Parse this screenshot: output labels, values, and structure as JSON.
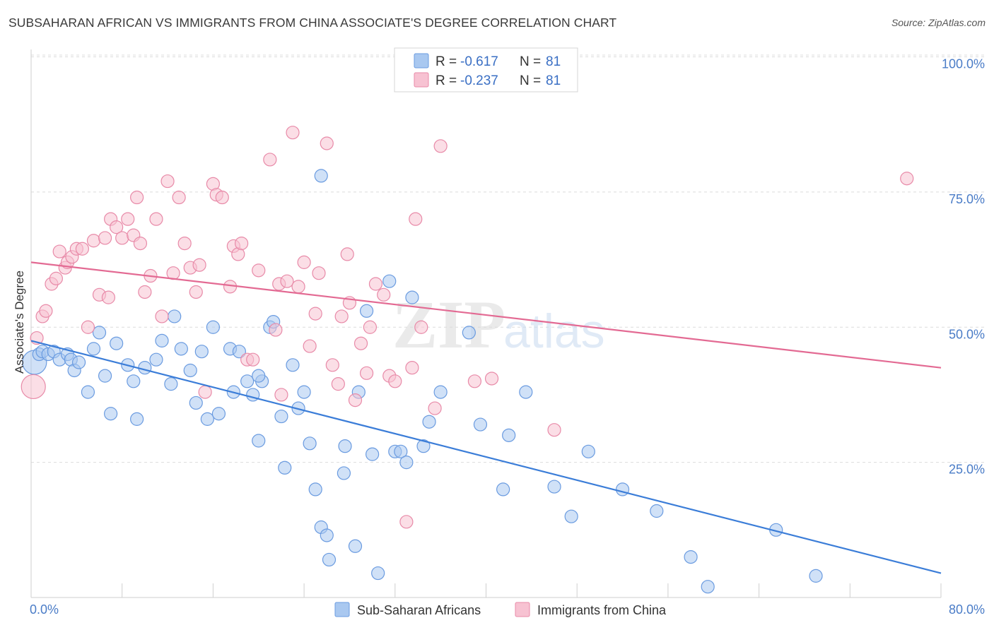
{
  "title": "SUBSAHARAN AFRICAN VS IMMIGRANTS FROM CHINA ASSOCIATE'S DEGREE CORRELATION CHART",
  "source": "Source: ZipAtlas.com",
  "legend_top": [
    {
      "r_label": "R =",
      "r_value": "-0.617",
      "n_label": "N =",
      "n_value": "81",
      "color": "#a9c8f0",
      "stroke": "#6a9be0"
    },
    {
      "r_label": "R =",
      "r_value": "-0.237",
      "n_label": "N =",
      "n_value": "81",
      "color": "#f7c2d2",
      "stroke": "#e88aa8"
    }
  ],
  "legend_bottom": [
    {
      "label": "Sub-Saharan Africans",
      "color": "#a9c8f0",
      "stroke": "#6a9be0"
    },
    {
      "label": "Immigrants from China",
      "color": "#f7c2d2",
      "stroke": "#e88aa8"
    }
  ],
  "chart_data": {
    "type": "scatter",
    "xlabel": "",
    "ylabel": "Associate's Degree",
    "xlim": [
      0,
      80
    ],
    "ylim": [
      0,
      105
    ],
    "x_tick_labels": [
      "0.0%",
      "80.0%"
    ],
    "y_ticks": [
      25,
      50,
      75,
      100
    ],
    "y_tick_labels": [
      "25.0%",
      "50.0%",
      "75.0%",
      "100.0%"
    ],
    "grid": true,
    "legend_position": "top-center",
    "series": [
      {
        "name": "Sub-Saharan Africans",
        "color": "#3b7dd8",
        "point_fill": "#a9c8f0",
        "point_stroke": "#6a9be0",
        "trend": {
          "x": [
            0,
            80
          ],
          "y": [
            47.5,
            4.5
          ]
        },
        "points": [
          [
            0.3,
            43.5
          ],
          [
            0.7,
            45
          ],
          [
            1.0,
            45.5
          ],
          [
            1.5,
            45
          ],
          [
            2.0,
            45.5
          ],
          [
            2.5,
            44
          ],
          [
            3.2,
            45
          ],
          [
            3.5,
            44
          ],
          [
            3.8,
            42
          ],
          [
            4.2,
            43.5
          ],
          [
            5.0,
            38
          ],
          [
            5.5,
            46
          ],
          [
            6.0,
            49
          ],
          [
            6.5,
            41
          ],
          [
            7.0,
            34
          ],
          [
            7.5,
            47
          ],
          [
            8.5,
            43
          ],
          [
            9.0,
            40
          ],
          [
            9.3,
            33
          ],
          [
            10.0,
            42.5
          ],
          [
            11.0,
            44
          ],
          [
            11.5,
            47.5
          ],
          [
            12.3,
            39.5
          ],
          [
            12.6,
            52
          ],
          [
            13.2,
            46
          ],
          [
            14.0,
            42
          ],
          [
            14.5,
            36
          ],
          [
            15.0,
            45.5
          ],
          [
            15.5,
            33
          ],
          [
            16.0,
            50
          ],
          [
            16.5,
            34
          ],
          [
            17.5,
            46
          ],
          [
            17.8,
            38
          ],
          [
            18.3,
            45.5
          ],
          [
            19.0,
            40
          ],
          [
            19.5,
            37.5
          ],
          [
            20.0,
            29
          ],
          [
            20.3,
            40
          ],
          [
            21.0,
            50
          ],
          [
            21.3,
            51
          ],
          [
            22.0,
            33.5
          ],
          [
            22.3,
            24
          ],
          [
            23.0,
            43
          ],
          [
            23.5,
            35
          ],
          [
            24.0,
            38
          ],
          [
            24.5,
            28.5
          ],
          [
            25.0,
            20
          ],
          [
            25.5,
            13
          ],
          [
            26.0,
            11.5
          ],
          [
            26.2,
            7
          ],
          [
            27.5,
            23
          ],
          [
            27.6,
            28
          ],
          [
            28.5,
            9.5
          ],
          [
            28.8,
            38
          ],
          [
            29.5,
            53
          ],
          [
            30.0,
            26.5
          ],
          [
            30.5,
            4.5
          ],
          [
            31.5,
            58.5
          ],
          [
            32.0,
            27
          ],
          [
            32.5,
            27
          ],
          [
            33.0,
            25
          ],
          [
            33.5,
            55.5
          ],
          [
            34.5,
            28
          ],
          [
            35.0,
            32.5
          ],
          [
            25.5,
            78
          ],
          [
            38.5,
            49
          ],
          [
            39.5,
            32
          ],
          [
            41.5,
            20
          ],
          [
            42,
            30
          ],
          [
            43.5,
            38
          ],
          [
            46,
            20.5
          ],
          [
            47.5,
            15
          ],
          [
            49,
            27
          ],
          [
            52,
            20
          ],
          [
            55,
            16
          ],
          [
            58,
            7.5
          ],
          [
            59.5,
            2
          ],
          [
            65.5,
            12.5
          ],
          [
            69,
            4
          ],
          [
            36,
            38
          ],
          [
            20,
            41
          ]
        ]
      },
      {
        "name": "Immigrants from China",
        "color": "#e36a93",
        "point_fill": "#f7c2d2",
        "point_stroke": "#e88aa8",
        "trend": {
          "x": [
            0,
            80
          ],
          "y": [
            62,
            42.5
          ]
        },
        "points": [
          [
            0.2,
            39
          ],
          [
            0.5,
            48
          ],
          [
            1.0,
            52
          ],
          [
            1.3,
            53
          ],
          [
            1.8,
            58
          ],
          [
            2.2,
            59
          ],
          [
            2.5,
            64
          ],
          [
            3.0,
            61
          ],
          [
            3.2,
            62
          ],
          [
            3.6,
            63
          ],
          [
            4.0,
            64.5
          ],
          [
            4.5,
            64.5
          ],
          [
            5.0,
            50
          ],
          [
            5.5,
            66
          ],
          [
            6.0,
            56
          ],
          [
            6.5,
            66.5
          ],
          [
            6.8,
            55.5
          ],
          [
            7.0,
            70
          ],
          [
            7.5,
            68.5
          ],
          [
            8.0,
            66.5
          ],
          [
            8.5,
            70
          ],
          [
            9.0,
            67
          ],
          [
            9.3,
            74
          ],
          [
            9.6,
            65.5
          ],
          [
            10.0,
            56.5
          ],
          [
            10.5,
            59.5
          ],
          [
            11.0,
            70
          ],
          [
            11.5,
            52
          ],
          [
            12.0,
            77
          ],
          [
            12.5,
            60
          ],
          [
            13.0,
            74
          ],
          [
            13.5,
            65.5
          ],
          [
            14.0,
            61
          ],
          [
            14.5,
            56.5
          ],
          [
            14.8,
            61.5
          ],
          [
            15.3,
            38
          ],
          [
            16.0,
            76.5
          ],
          [
            16.3,
            74.5
          ],
          [
            16.8,
            74
          ],
          [
            17.5,
            57.5
          ],
          [
            17.8,
            65
          ],
          [
            18.2,
            63.5
          ],
          [
            18.5,
            65.5
          ],
          [
            19.0,
            44
          ],
          [
            19.5,
            44
          ],
          [
            20.0,
            60.5
          ],
          [
            21.0,
            81
          ],
          [
            21.5,
            49.5
          ],
          [
            21.8,
            58
          ],
          [
            22.0,
            37.5
          ],
          [
            22.5,
            58.5
          ],
          [
            23.0,
            86
          ],
          [
            23.5,
            57.5
          ],
          [
            24.0,
            62
          ],
          [
            24.5,
            46.5
          ],
          [
            25.0,
            52.5
          ],
          [
            25.3,
            60
          ],
          [
            26.0,
            84
          ],
          [
            26.5,
            43
          ],
          [
            27.0,
            39.5
          ],
          [
            27.3,
            52
          ],
          [
            27.8,
            63.5
          ],
          [
            28.0,
            54.5
          ],
          [
            28.5,
            36.5
          ],
          [
            29.0,
            47
          ],
          [
            29.5,
            41.5
          ],
          [
            29.8,
            50
          ],
          [
            30.3,
            58
          ],
          [
            31.0,
            56
          ],
          [
            31.5,
            41
          ],
          [
            32.0,
            40
          ],
          [
            33.0,
            14
          ],
          [
            33.5,
            42.5
          ],
          [
            33.8,
            70
          ],
          [
            34.3,
            50
          ],
          [
            35.5,
            35
          ],
          [
            36.0,
            83.5
          ],
          [
            39.0,
            40
          ],
          [
            40.5,
            40.5
          ],
          [
            46,
            31
          ],
          [
            77,
            77.5
          ]
        ]
      }
    ]
  }
}
